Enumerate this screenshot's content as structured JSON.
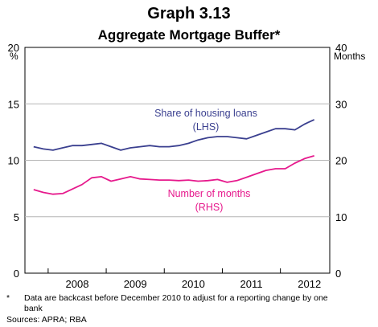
{
  "title": "Graph 3.13",
  "subtitle": "Aggregate Mortgage Buffer*",
  "footnote_mark": "*",
  "footnote": "Data are backcast before December 2010 to adjust for a reporting change by one bank",
  "sources": "Sources: APRA; RBA",
  "chart_data": {
    "type": "line",
    "left_axis": {
      "unit": "%",
      "ylim": [
        0,
        20
      ],
      "ticks": [
        "0",
        "5",
        "10",
        "15",
        "20"
      ]
    },
    "right_axis": {
      "unit": "Months",
      "ylim": [
        0,
        40
      ],
      "ticks": [
        "0",
        "10",
        "20",
        "30",
        "40"
      ]
    },
    "x_ticks": [
      "2008",
      "2009",
      "2010",
      "2011",
      "2012"
    ],
    "xlim": [
      2007.6,
      2012.85
    ],
    "grid": true,
    "series": [
      {
        "name": "Share of housing loans",
        "axis_label": "(LHS)",
        "axis": "left",
        "color": "#3a3f8f",
        "x": [
          2007.75,
          2007.917,
          2008.083,
          2008.25,
          2008.417,
          2008.583,
          2008.75,
          2008.917,
          2009.083,
          2009.25,
          2009.417,
          2009.583,
          2009.75,
          2009.917,
          2010.083,
          2010.25,
          2010.417,
          2010.583,
          2010.75,
          2010.917,
          2011.083,
          2011.25,
          2011.417,
          2011.583,
          2011.75,
          2011.917,
          2012.083,
          2012.25,
          2012.417,
          2012.583
        ],
        "values": [
          11.2,
          11.0,
          10.9,
          11.1,
          11.3,
          11.3,
          11.4,
          11.5,
          11.2,
          10.9,
          11.1,
          11.2,
          11.3,
          11.2,
          11.2,
          11.3,
          11.5,
          11.8,
          12.0,
          12.1,
          12.1,
          12.0,
          11.9,
          12.2,
          12.5,
          12.8,
          12.8,
          12.7,
          13.2,
          13.6
        ]
      },
      {
        "name": "Number of months",
        "axis_label": "(RHS)",
        "axis": "right",
        "color": "#e6198c",
        "x": [
          2007.75,
          2007.917,
          2008.083,
          2008.25,
          2008.417,
          2008.583,
          2008.75,
          2008.917,
          2009.083,
          2009.25,
          2009.417,
          2009.583,
          2009.75,
          2009.917,
          2010.083,
          2010.25,
          2010.417,
          2010.583,
          2010.75,
          2010.917,
          2011.083,
          2011.25,
          2011.417,
          2011.583,
          2011.75,
          2011.917,
          2012.083,
          2012.25,
          2012.417,
          2012.583
        ],
        "values": [
          14.8,
          14.3,
          14.0,
          14.1,
          14.9,
          15.7,
          16.9,
          17.1,
          16.3,
          16.7,
          17.1,
          16.7,
          16.6,
          16.5,
          16.5,
          16.4,
          16.5,
          16.3,
          16.4,
          16.6,
          16.1,
          16.4,
          17.0,
          17.6,
          18.2,
          18.5,
          18.5,
          19.5,
          20.3,
          20.8
        ]
      }
    ]
  }
}
